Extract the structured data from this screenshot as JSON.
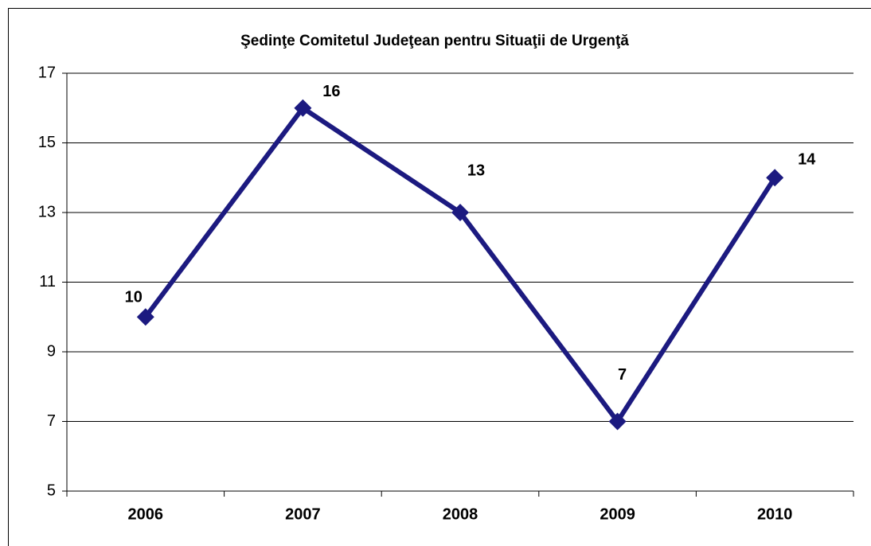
{
  "chart_data": {
    "type": "line",
    "title": "Şedinţe Comitetul Judeţean pentru Situaţii de Urgenţă",
    "categories": [
      "2006",
      "2007",
      "2008",
      "2009",
      "2010"
    ],
    "values": [
      10,
      16,
      13,
      7,
      14
    ],
    "color": "#1c1a80",
    "ylim": [
      5,
      17
    ],
    "yticks": [
      5,
      7,
      9,
      11,
      13,
      15,
      17
    ],
    "grid": true
  }
}
